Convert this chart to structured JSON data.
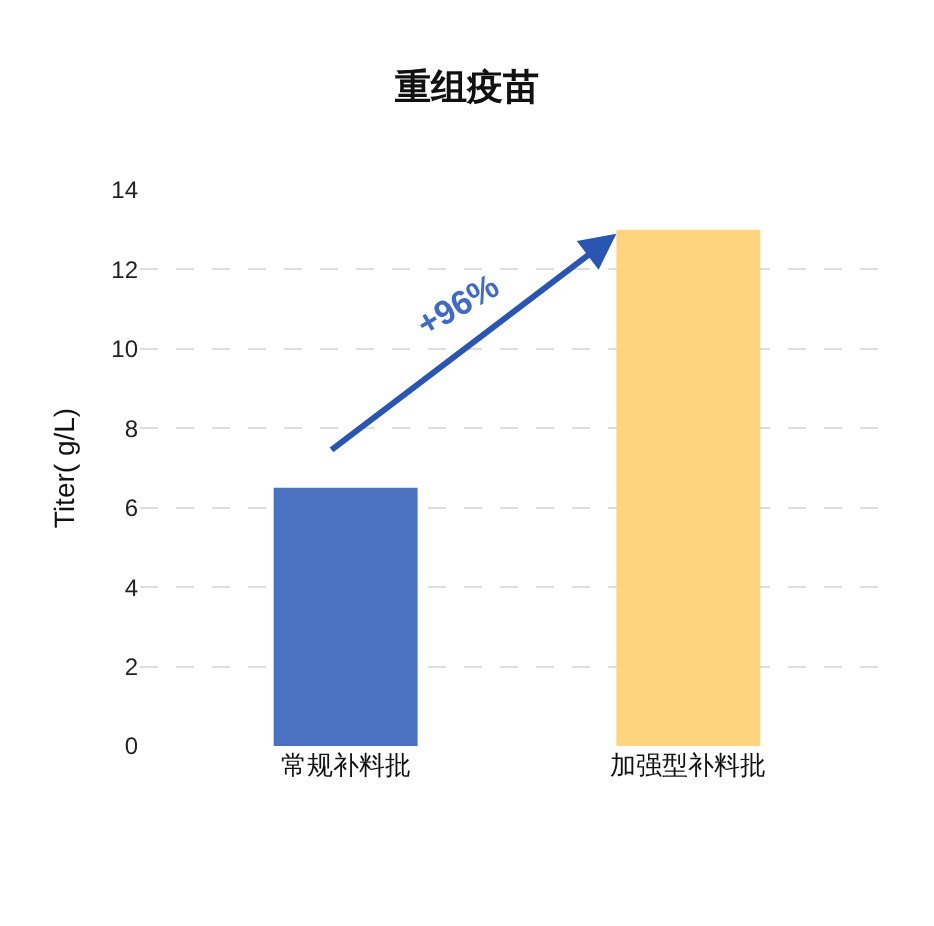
{
  "chart_data": {
    "type": "bar",
    "title": "重组疫苗",
    "ylabel": "Titer( g/L)",
    "categories": [
      "常规补料批",
      "加强型补料批"
    ],
    "values": [
      6.5,
      13.0
    ],
    "colors": [
      "#4a72c0",
      "#ffd47f"
    ],
    "ylim": [
      0,
      14
    ],
    "yticks": [
      0,
      2,
      4,
      6,
      8,
      10,
      12,
      14
    ],
    "grid": "y",
    "annotations": [
      "+96%"
    ]
  }
}
